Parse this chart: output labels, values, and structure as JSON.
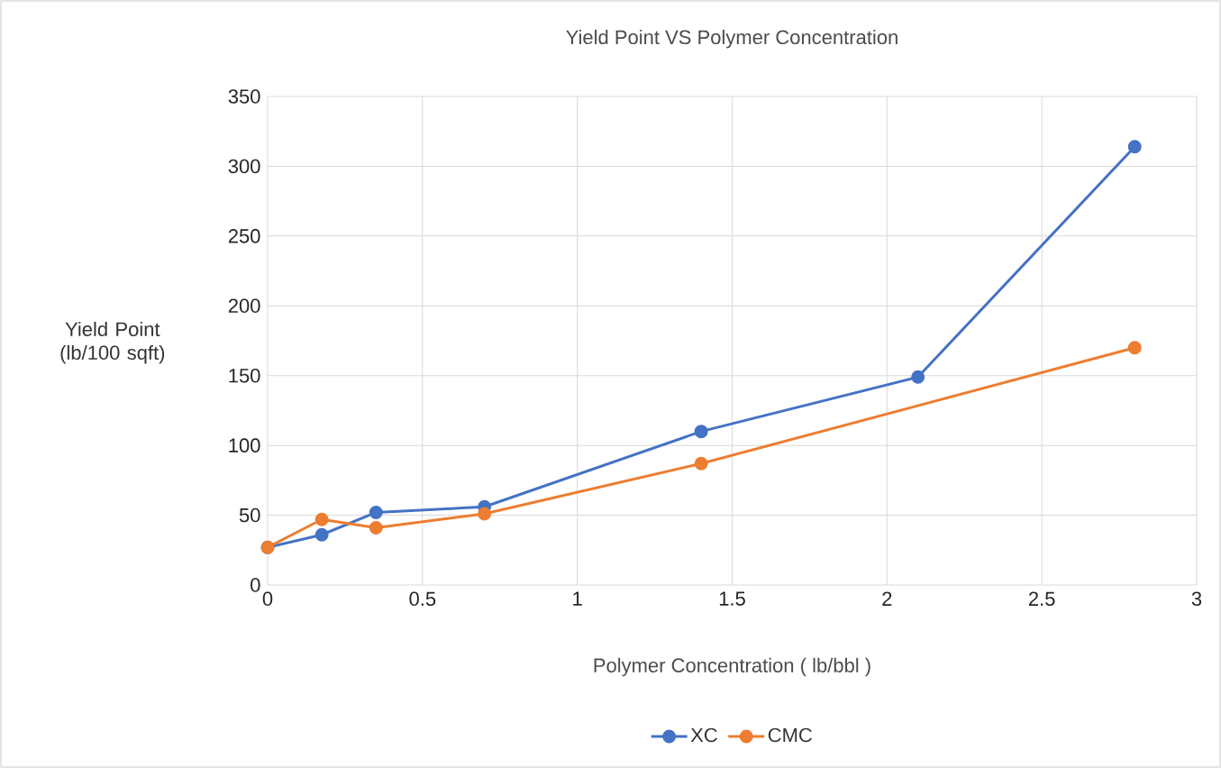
{
  "chart_data": {
    "type": "line",
    "title": "Yield Point VS Polymer Concentration",
    "xlabel": "Polymer Concentration ( lb/bbl )",
    "ylabel": "Yield Point (lb/100 sqft)",
    "xlim": [
      0,
      3
    ],
    "xticks": [
      0,
      0.5,
      1,
      1.5,
      2,
      2.5,
      3
    ],
    "ylim": [
      0,
      350
    ],
    "yticks": [
      0,
      50,
      100,
      150,
      200,
      250,
      300,
      350
    ],
    "grid": true,
    "legend": "bottom",
    "marker": "circle",
    "line_style": "solid",
    "series": [
      {
        "name": "XC",
        "color": "#4472c4",
        "x": [
          0,
          0.175,
          0.35,
          0.7,
          1.4,
          2.1,
          2.8
        ],
        "values": [
          27,
          36,
          52,
          56,
          110,
          149,
          314
        ]
      },
      {
        "name": "CMC",
        "color": "#ed7d31",
        "x": [
          0,
          0.175,
          0.35,
          0.7,
          1.4,
          2.8
        ],
        "values": [
          27,
          47,
          41,
          51,
          87,
          170
        ]
      }
    ]
  }
}
